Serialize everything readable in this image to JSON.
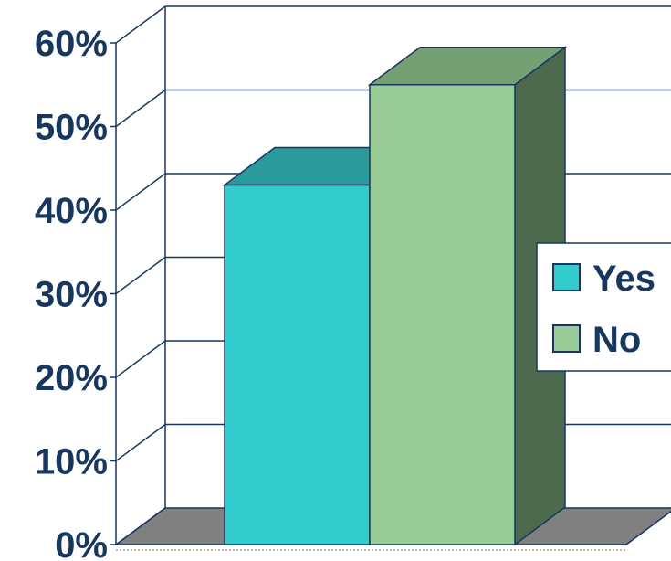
{
  "chart_data": {
    "type": "bar",
    "categories": [
      ""
    ],
    "series": [
      {
        "name": "Yes",
        "values": [
          43
        ],
        "color": "#33cccc",
        "top_color": "#2a9a9a"
      },
      {
        "name": "No",
        "values": [
          55
        ],
        "color": "#99cc99",
        "top_color": "#74a074",
        "side_color": "#4e6a4e"
      }
    ],
    "ylim": [
      0,
      60
    ],
    "yticks": [
      0,
      10,
      20,
      30,
      40,
      50,
      60
    ],
    "tick_labels": [
      "0%",
      "10%",
      "20%",
      "30%",
      "40%",
      "50%",
      "60%"
    ],
    "grid": true,
    "legend_position": "right",
    "three_d": true,
    "colors": {
      "axis": "#17375e",
      "text": "#17375e",
      "floor": "#808080"
    }
  }
}
